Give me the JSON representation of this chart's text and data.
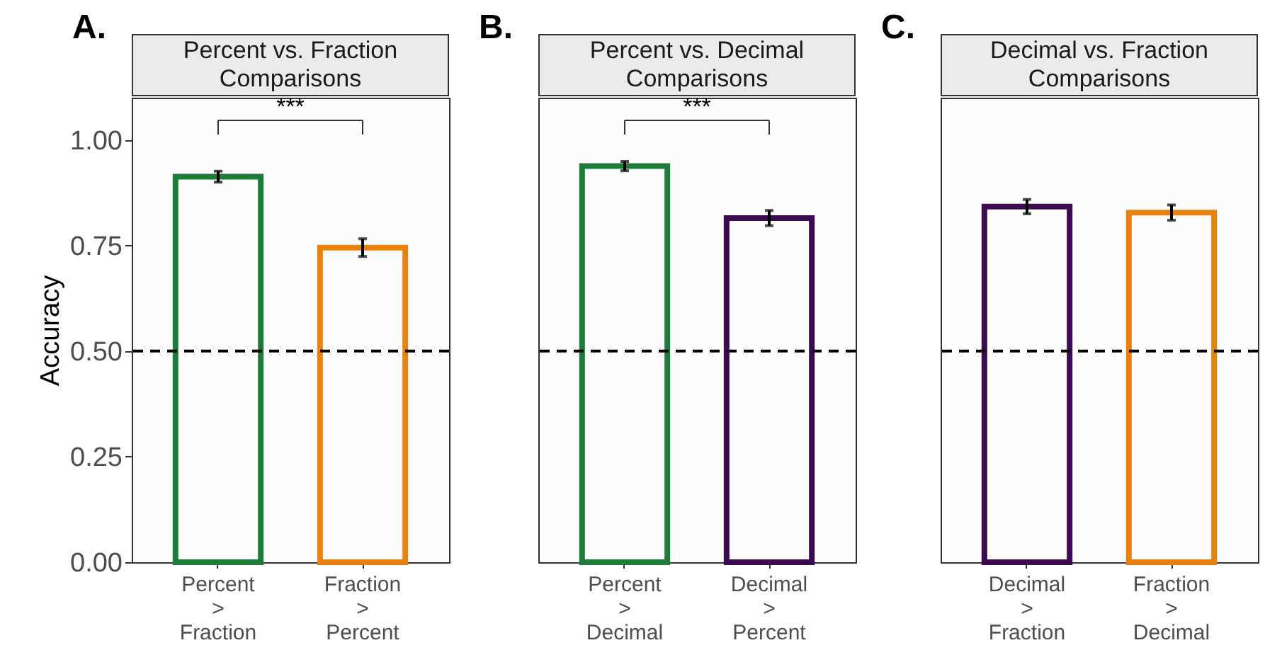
{
  "chart_data": [
    {
      "type": "bar",
      "title": "Percent vs. Fraction Comparisons",
      "ylabel": "Accuracy",
      "categories": [
        "Percent > Fraction",
        "Fraction > Percent"
      ],
      "values": [
        0.913,
        0.745
      ],
      "colors": [
        "#1e7b3a",
        "#e8820e"
      ],
      "errors": [
        0.013,
        0.021
      ],
      "ylim": [
        0,
        1.1
      ],
      "yticks": [
        {
          "value": 0,
          "label": "0.00"
        },
        {
          "value": 0.25,
          "label": "0.25"
        },
        {
          "value": 0.5,
          "label": "0.50"
        },
        {
          "value": 0.75,
          "label": "0.75"
        },
        {
          "value": 1,
          "label": "1.00"
        }
      ],
      "ref_lines": [
        {
          "axis": "y",
          "value": 0.5,
          "line_style": "dashed",
          "color": "#000000"
        }
      ],
      "annotations": [
        "A.",
        "***"
      ]
    },
    {
      "type": "bar",
      "title": "Percent vs. Decimal Comparisons",
      "categories": [
        "Percent > Decimal",
        "Decimal > Percent"
      ],
      "values": [
        0.938,
        0.815
      ],
      "colors": [
        "#1e7b3a",
        "#3b0a4f"
      ],
      "errors": [
        0.011,
        0.018
      ],
      "ylim": [
        0,
        1.1
      ],
      "tick_labels": "x",
      "ref_lines": [
        {
          "axis": "y",
          "value": 0.5,
          "line_style": "dashed",
          "color": "#000000"
        }
      ],
      "annotations": [
        "B.",
        "***"
      ]
    },
    {
      "type": "bar",
      "title": "Decimal vs. Fraction Comparisons",
      "categories": [
        "Decimal > Fraction",
        "Fraction > Decimal"
      ],
      "values": [
        0.842,
        0.828
      ],
      "colors": [
        "#3b0a4f",
        "#e8820e"
      ],
      "errors": [
        0.017,
        0.018
      ],
      "ylim": [
        0,
        1.1
      ],
      "tick_labels": "x",
      "ref_lines": [
        {
          "axis": "y",
          "value": 0.5,
          "line_style": "dashed",
          "color": "#000000"
        }
      ],
      "annotations": [
        "C."
      ]
    }
  ]
}
